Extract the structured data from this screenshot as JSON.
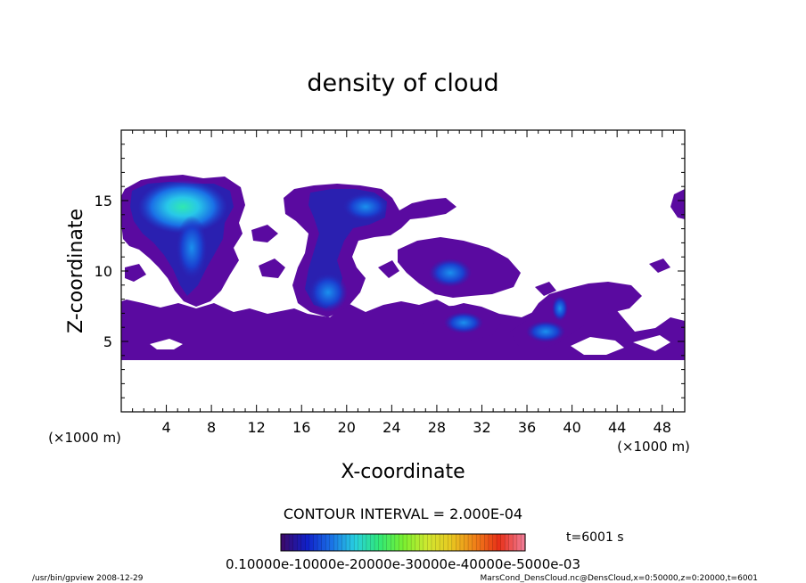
{
  "chart_data": {
    "type": "heatmap",
    "title": "density of cloud",
    "xlabel": "X-coordinate",
    "ylabel": "Z-coordinate",
    "x_unit": "(×1000 m)",
    "y_unit": "(×1000 m)",
    "xlim": [
      0,
      50
    ],
    "ylim": [
      0,
      20
    ],
    "x_ticks": [
      4,
      8,
      12,
      16,
      20,
      24,
      28,
      32,
      36,
      40,
      44,
      48
    ],
    "y_ticks": [
      5,
      10,
      15
    ],
    "contour_interval_text": "CONTOUR INTERVAL = 2.000E-04",
    "time_text": "t=6001 s",
    "colorbar": {
      "range": [
        0,
        0.001
      ],
      "tick_text": "0.10000e-10000e-20000e-30000e-40000e-5000e-03",
      "colors": [
        "#3a0a6e",
        "#1020c8",
        "#1a70e6",
        "#28d0e0",
        "#30e878",
        "#78f030",
        "#d0e830",
        "#e8c820",
        "#f08018",
        "#e83018",
        "#f07890"
      ]
    },
    "regions": [
      {
        "name": "upper-left cloud",
        "x": [
          0.2,
          10
        ],
        "z": [
          8,
          16.5
        ],
        "peak_approx": 0.0006
      },
      {
        "name": "middle-upper cloud",
        "x": [
          12,
          25
        ],
        "z": [
          6,
          16
        ],
        "peak_approx": 0.0004
      },
      {
        "name": "scattered middle clouds",
        "x": [
          24,
          38
        ],
        "z": [
          5,
          12
        ],
        "peak_approx": 0.0003
      },
      {
        "name": "right cloud",
        "x": [
          34,
          50
        ],
        "z": [
          4,
          10
        ],
        "peak_approx": 0.0003
      },
      {
        "name": "low cloud layer",
        "x": [
          0,
          50
        ],
        "z": [
          3.8,
          7.5
        ],
        "peak_approx": 0.0001
      }
    ]
  },
  "footer": {
    "left": "/usr/bin/gpview   2008-12-29",
    "right": "MarsCond_DensCloud.nc@DensCloud,x=0:50000,z=0:20000,t=6001"
  }
}
